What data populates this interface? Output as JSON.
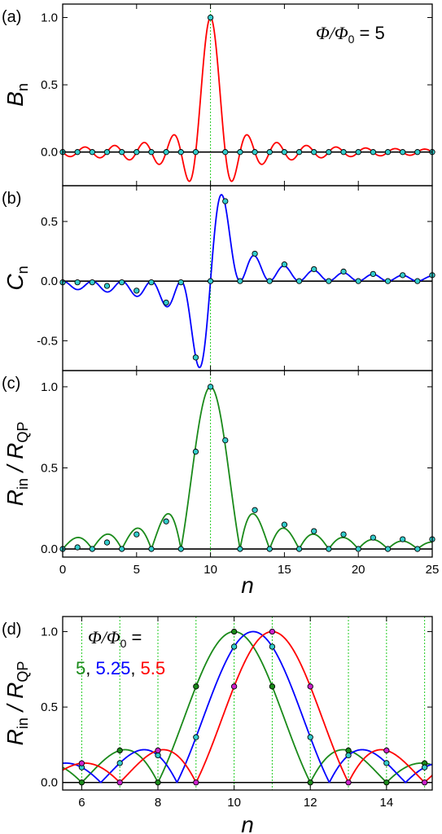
{
  "chart_data": [
    {
      "panel": "(a)",
      "type": "line",
      "ylabel_main": "B",
      "ylabel_sub": "n",
      "annotation": {
        "lhs": "Φ/Φ",
        "sub": "0",
        "rhs": " = 5"
      },
      "xlim": [
        0,
        25
      ],
      "ylim": [
        -0.25,
        1.1
      ],
      "xticks": [
        0,
        5,
        10,
        15,
        20,
        25
      ],
      "yticks": [
        0.0,
        0.5,
        1.0
      ],
      "ytick_labels": [
        "0.0",
        "0.5",
        "1.0"
      ],
      "x_tick_labels_visible": false,
      "guide_x": 10,
      "series": [
        {
          "color": "#ff0000",
          "flux": 5,
          "func": "B",
          "points": [
            {
              "n": 0,
              "v": 0
            },
            {
              "n": 1,
              "v": 0
            },
            {
              "n": 2,
              "v": 0
            },
            {
              "n": 3,
              "v": 0
            },
            {
              "n": 4,
              "v": 0
            },
            {
              "n": 5,
              "v": 0
            },
            {
              "n": 6,
              "v": 0
            },
            {
              "n": 7,
              "v": 0
            },
            {
              "n": 8,
              "v": 0
            },
            {
              "n": 9,
              "v": 0
            },
            {
              "n": 10,
              "v": 1.0
            },
            {
              "n": 11,
              "v": 0
            },
            {
              "n": 12,
              "v": 0
            },
            {
              "n": 13,
              "v": 0
            },
            {
              "n": 14,
              "v": 0
            },
            {
              "n": 15,
              "v": 0
            },
            {
              "n": 16,
              "v": 0
            },
            {
              "n": 17,
              "v": 0
            },
            {
              "n": 18,
              "v": 0
            },
            {
              "n": 19,
              "v": 0
            },
            {
              "n": 20,
              "v": 0
            },
            {
              "n": 21,
              "v": 0
            },
            {
              "n": 22,
              "v": 0
            },
            {
              "n": 23,
              "v": 0
            },
            {
              "n": 24,
              "v": 0
            },
            {
              "n": 25,
              "v": 0
            }
          ]
        }
      ]
    },
    {
      "panel": "(b)",
      "type": "line",
      "ylabel_main": "C",
      "ylabel_sub": "n",
      "xlim": [
        0,
        25
      ],
      "ylim": [
        -0.75,
        0.8
      ],
      "xticks": [
        0,
        5,
        10,
        15,
        20,
        25
      ],
      "yticks": [
        -0.5,
        0.0,
        0.5
      ],
      "ytick_labels": [
        "-0.5",
        "0.0",
        "0.5"
      ],
      "x_tick_labels_visible": false,
      "guide_x": 10,
      "series": [
        {
          "color": "#0000ff",
          "flux": 5,
          "func": "C",
          "points": [
            {
              "n": 0,
              "v": -0.01
            },
            {
              "n": 1,
              "v": -0.01
            },
            {
              "n": 2,
              "v": -0.01
            },
            {
              "n": 3,
              "v": -0.04
            },
            {
              "n": 4,
              "v": -0.01
            },
            {
              "n": 5,
              "v": -0.08
            },
            {
              "n": 6,
              "v": -0.01
            },
            {
              "n": 7,
              "v": -0.18
            },
            {
              "n": 8,
              "v": -0.01
            },
            {
              "n": 9,
              "v": -0.64
            },
            {
              "n": 10,
              "v": 0.0
            },
            {
              "n": 11,
              "v": 0.67
            },
            {
              "n": 12,
              "v": 0.0
            },
            {
              "n": 13,
              "v": 0.23
            },
            {
              "n": 14,
              "v": 0.0
            },
            {
              "n": 15,
              "v": 0.14
            },
            {
              "n": 16,
              "v": 0.0
            },
            {
              "n": 17,
              "v": 0.1
            },
            {
              "n": 18,
              "v": 0.0
            },
            {
              "n": 19,
              "v": 0.08
            },
            {
              "n": 20,
              "v": 0.0
            },
            {
              "n": 21,
              "v": 0.06
            },
            {
              "n": 22,
              "v": 0.0
            },
            {
              "n": 23,
              "v": 0.05
            },
            {
              "n": 24,
              "v": 0.0
            },
            {
              "n": 25,
              "v": 0.05
            }
          ]
        }
      ]
    },
    {
      "panel": "(c)",
      "type": "line",
      "ylabel_main": "R",
      "ylabel_sub": "in",
      "ylabel_div": " / ",
      "ylabel_main2": "R",
      "ylabel_sub2": "QP",
      "xlabel": "n",
      "xlim": [
        0,
        25
      ],
      "ylim": [
        -0.05,
        1.1
      ],
      "xticks": [
        0,
        5,
        10,
        15,
        20,
        25
      ],
      "xtick_labels": [
        "0",
        "5",
        "10",
        "15",
        "20",
        "25"
      ],
      "yticks": [
        0.0,
        0.5,
        1.0
      ],
      "ytick_labels": [
        "0.0",
        "0.5",
        "1.0"
      ],
      "x_tick_labels_visible": true,
      "guide_x": 10,
      "series": [
        {
          "color": "#1a8a1a",
          "flux": 5,
          "func": "R",
          "points": [
            {
              "n": 0,
              "v": 0
            },
            {
              "n": 1,
              "v": 0.01
            },
            {
              "n": 2,
              "v": 0
            },
            {
              "n": 3,
              "v": 0.04
            },
            {
              "n": 4,
              "v": 0
            },
            {
              "n": 5,
              "v": 0.09
            },
            {
              "n": 6,
              "v": 0
            },
            {
              "n": 7,
              "v": 0.17
            },
            {
              "n": 8,
              "v": 0
            },
            {
              "n": 9,
              "v": 0.6
            },
            {
              "n": 10,
              "v": 1.0
            },
            {
              "n": 11,
              "v": 0.67
            },
            {
              "n": 12,
              "v": 0
            },
            {
              "n": 13,
              "v": 0.24
            },
            {
              "n": 14,
              "v": 0
            },
            {
              "n": 15,
              "v": 0.15
            },
            {
              "n": 16,
              "v": 0
            },
            {
              "n": 17,
              "v": 0.11
            },
            {
              "n": 18,
              "v": 0
            },
            {
              "n": 19,
              "v": 0.09
            },
            {
              "n": 20,
              "v": 0
            },
            {
              "n": 21,
              "v": 0.07
            },
            {
              "n": 22,
              "v": 0
            },
            {
              "n": 23,
              "v": 0.06
            },
            {
              "n": 24,
              "v": 0
            },
            {
              "n": 25,
              "v": 0.06
            }
          ]
        }
      ]
    },
    {
      "panel": "(d)",
      "type": "line",
      "ylabel_main": "R",
      "ylabel_sub": "in",
      "ylabel_div": " / ",
      "ylabel_main2": "R",
      "ylabel_sub2": "QP",
      "xlabel": "n",
      "xlim": [
        5.5,
        15.2
      ],
      "ylim": [
        -0.05,
        1.1
      ],
      "xticks": [
        6,
        8,
        10,
        12,
        14
      ],
      "xtick_labels": [
        "6",
        "8",
        "10",
        "12",
        "14"
      ],
      "yticks": [
        0.0,
        0.5,
        1.0
      ],
      "ytick_labels": [
        "0.0",
        "0.5",
        "1.0"
      ],
      "x_tick_labels_visible": true,
      "guide_xs": [
        6,
        7,
        8,
        9,
        10,
        11,
        12,
        13,
        14,
        15
      ],
      "annotation": {
        "lhs": "Φ/Φ",
        "sub": "0",
        "rhs": " ="
      },
      "legend_values": [
        {
          "text": "5",
          "color": "#1a8a1a"
        },
        {
          "text": ", ",
          "color": "#000000"
        },
        {
          "text": "5.25",
          "color": "#0000ff"
        },
        {
          "text": ", ",
          "color": "#000000"
        },
        {
          "text": "5.5",
          "color": "#ff0000"
        }
      ],
      "series": [
        {
          "color": "#1a8a1a",
          "flux": 5,
          "func": "R",
          "marker": "#1a8a1a"
        },
        {
          "color": "#0000ff",
          "flux": 5.25,
          "func": "R",
          "marker": "#33cccc"
        },
        {
          "color": "#ff0000",
          "flux": 5.5,
          "func": "R",
          "marker": "#cc22cc"
        }
      ]
    }
  ],
  "panel_labels": [
    "(a)",
    "(b)",
    "(c)",
    "(d)"
  ],
  "colors": {
    "guide": "#22cc22",
    "marker_default": "#33cccc",
    "axis": "#000000"
  }
}
